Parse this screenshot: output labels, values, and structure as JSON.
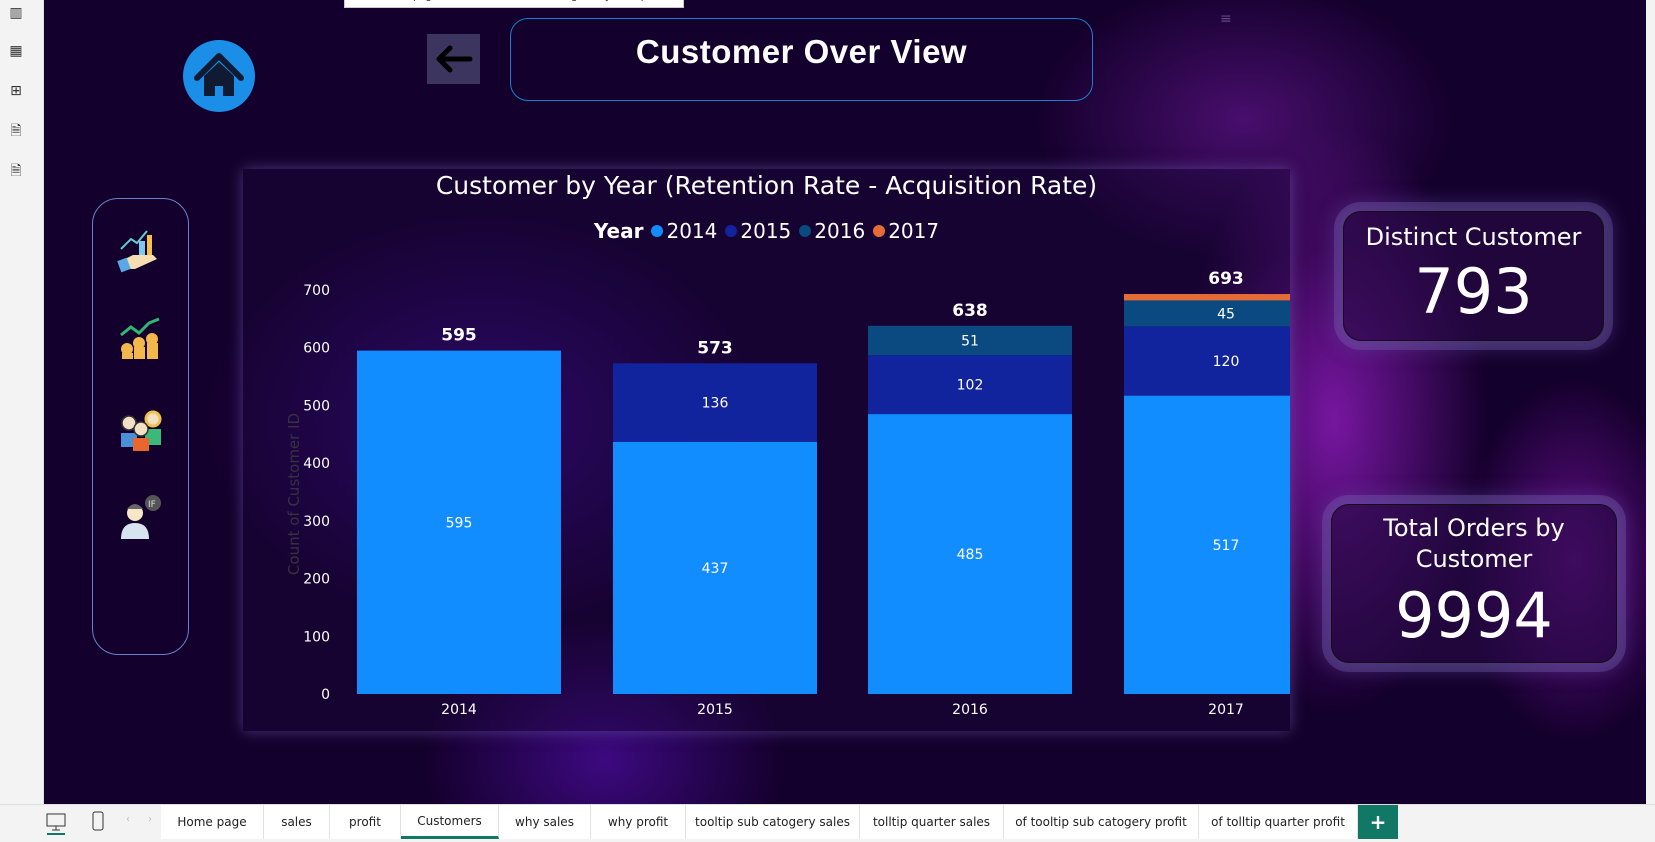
{
  "tooltip": "Choose a page view. We'll save the setting with your report.",
  "header": {
    "title": "Customer Over View"
  },
  "left_toolbar": [
    "report-view-icon",
    "table-view-icon",
    "model-view-icon",
    "dax-query-icon",
    "tmdl-view-icon"
  ],
  "sidebar": {
    "icons": [
      "sales-growth-icon",
      "profit-coins-icon",
      "customers-group-icon",
      "customer-person-icon"
    ]
  },
  "chart_data": {
    "type": "bar",
    "stacked": true,
    "title": "Customer by Year (Retention Rate - Acquisition Rate)",
    "legend_title": "Year",
    "legend_position": "top",
    "ylabel": "Count of Customer ID",
    "xlabel": "",
    "ylim": [
      0,
      700
    ],
    "yticks": [
      "0",
      "100",
      "200",
      "300",
      "400",
      "500",
      "600",
      "700"
    ],
    "categories": [
      "2014",
      "2015",
      "2016",
      "2017"
    ],
    "series": [
      {
        "name": "2014",
        "color": "#118dff",
        "values": [
          595,
          437,
          485,
          517
        ]
      },
      {
        "name": "2015",
        "color": "#12239e",
        "values": [
          null,
          136,
          102,
          120
        ]
      },
      {
        "name": "2016",
        "color": "#0a4a80",
        "values": [
          null,
          null,
          51,
          45
        ]
      },
      {
        "name": "2017",
        "color": "#e66c37",
        "values": [
          null,
          null,
          null,
          11
        ]
      }
    ],
    "totals": [
      "595",
      "573",
      "638",
      "693"
    ],
    "grid": false
  },
  "cards": {
    "distinct": {
      "title": "Distinct Customer",
      "value": "793"
    },
    "orders": {
      "title": "Total Orders by Customer",
      "value": "9994"
    }
  },
  "tabs": [
    {
      "label": "Home page"
    },
    {
      "label": "sales"
    },
    {
      "label": "profit"
    },
    {
      "label": "Customers",
      "active": true
    },
    {
      "label": "why sales"
    },
    {
      "label": "why profit"
    },
    {
      "label": "tooltip sub catogery sales"
    },
    {
      "label": "tolltip quarter sales"
    },
    {
      "label": "of tooltip sub catogery profit"
    },
    {
      "label": "of tolltip quarter profit"
    }
  ],
  "add_tab_label": "+"
}
